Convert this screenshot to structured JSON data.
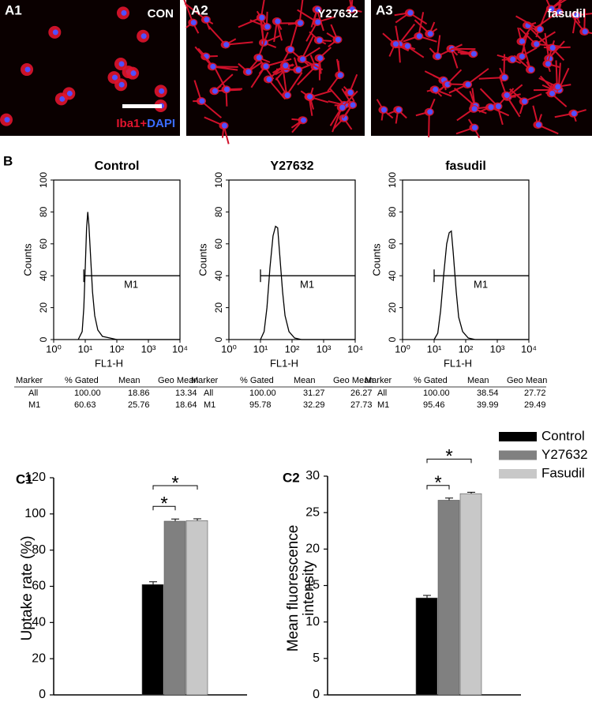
{
  "panels_a": [
    {
      "label": "A1",
      "title": "CON"
    },
    {
      "label": "A2",
      "title": "Y27632"
    },
    {
      "label": "A3",
      "title": "fasudil"
    }
  ],
  "stain": [
    "Iba1+",
    "DAPI"
  ],
  "panel_b": {
    "label": "B",
    "ylabel": "Counts",
    "xlabel": "FL1-H",
    "log_x": true,
    "xlim": [
      1,
      10000
    ],
    "ylim": [
      0,
      100
    ],
    "xticks": [
      {
        "value": 1,
        "label": "10⁰"
      },
      {
        "value": 10,
        "label": "10¹"
      },
      {
        "value": 100,
        "label": "10²"
      },
      {
        "value": 1000,
        "label": "10³"
      },
      {
        "value": 10000,
        "label": "10⁴"
      }
    ],
    "yticks": [
      0,
      20,
      40,
      60,
      80,
      100
    ],
    "histograms": [
      {
        "title": "Control",
        "marker": "M1",
        "marker_range": [
          9,
          10000
        ],
        "marker_level": 40,
        "x": [
          6,
          8,
          9,
          10,
          11,
          12,
          13,
          15,
          17,
          20,
          25,
          35,
          60,
          100,
          1000,
          10000
        ],
        "counts": [
          0,
          5,
          20,
          45,
          70,
          80,
          72,
          50,
          30,
          15,
          6,
          2,
          1,
          0,
          0,
          0
        ],
        "table": {
          "columns": [
            "Marker",
            "% Gated",
            "Mean",
            "Geo Mean"
          ],
          "rows": [
            [
              "All",
              "100.00",
              "18.86",
              "13.34"
            ],
            [
              "M1",
              "60.63",
              "25.76",
              "18.64"
            ]
          ]
        }
      },
      {
        "title": "Y27632",
        "marker": "M1",
        "marker_range": [
          10,
          10000
        ],
        "marker_level": 40,
        "x": [
          10,
          13,
          16,
          20,
          25,
          30,
          35,
          40,
          50,
          60,
          80,
          120,
          200,
          10000
        ],
        "counts": [
          0,
          5,
          20,
          45,
          65,
          71,
          70,
          55,
          30,
          15,
          5,
          1,
          0,
          0
        ],
        "table": {
          "columns": [
            "Marker",
            "% Gated",
            "Mean",
            "Geo Mean"
          ],
          "rows": [
            [
              "All",
              "100.00",
              "31.27",
              "26.27"
            ],
            [
              "M1",
              "95.78",
              "32.29",
              "27.73"
            ]
          ]
        }
      },
      {
        "title": "fasudil",
        "marker": "M1",
        "marker_range": [
          10,
          10000
        ],
        "marker_level": 40,
        "x": [
          10,
          13,
          16,
          20,
          25,
          30,
          35,
          40,
          50,
          60,
          80,
          120,
          200,
          10000
        ],
        "counts": [
          0,
          4,
          18,
          40,
          60,
          67,
          68,
          55,
          30,
          14,
          5,
          1,
          0,
          0
        ],
        "table": {
          "columns": [
            "Marker",
            "% Gated",
            "Mean",
            "Geo Mean"
          ],
          "rows": [
            [
              "All",
              "100.00",
              "38.54",
              "27.72"
            ],
            [
              "M1",
              "95.46",
              "39.99",
              "29.49"
            ]
          ]
        }
      }
    ]
  },
  "chart_data": [
    {
      "type": "bar",
      "label": "C1",
      "ylabel": [
        "Uptake rate (%)"
      ],
      "ylim": [
        0,
        120
      ],
      "yticks": [
        0,
        20,
        40,
        60,
        80,
        100,
        120
      ],
      "series": [
        {
          "name": "Control",
          "color": "#000000",
          "values": [
            61
          ],
          "errors": [
            1.5
          ]
        },
        {
          "name": "Y27632",
          "color": "#808080",
          "values": [
            96
          ],
          "errors": [
            1.2
          ]
        },
        {
          "name": "Fasudil",
          "color": "#c8c8c8",
          "values": [
            96.3
          ],
          "errors": [
            1
          ]
        }
      ],
      "annotations": [
        "*",
        "*"
      ]
    },
    {
      "type": "bar",
      "label": "C2",
      "ylabel": [
        "Mean fluorescence",
        "intensity"
      ],
      "ylim": [
        0,
        30
      ],
      "yticks": [
        0,
        5,
        10,
        15,
        20,
        25,
        30
      ],
      "series": [
        {
          "name": "Control",
          "color": "#000000",
          "values": [
            13.3
          ],
          "errors": [
            0.35
          ]
        },
        {
          "name": "Y27632",
          "color": "#808080",
          "values": [
            26.7
          ],
          "errors": [
            0.3
          ]
        },
        {
          "name": "Fasudil",
          "color": "#c8c8c8",
          "values": [
            27.6
          ],
          "errors": [
            0.2
          ]
        }
      ],
      "annotations": [
        "*",
        "*"
      ]
    }
  ]
}
